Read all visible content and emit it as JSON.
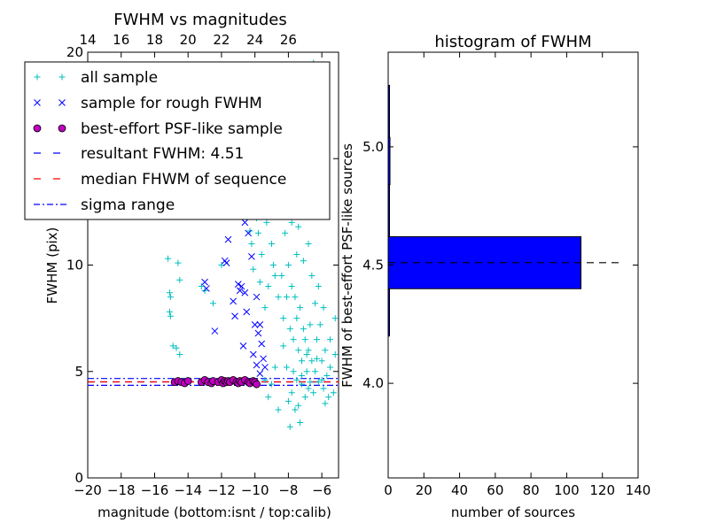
{
  "chart_data": [
    {
      "type": "scatter",
      "title": "FWHM vs magnitudes",
      "xlabel": "magnitude (bottom:isnt / top:calib)",
      "ylabel": "FWHM (pix)",
      "xlim": [
        -20,
        -5
      ],
      "ylim": [
        0,
        20
      ],
      "x_ticks": [
        -20,
        -18,
        -16,
        -14,
        -12,
        -10,
        -8,
        -6
      ],
      "y_ticks": [
        0,
        5,
        10,
        15,
        20
      ],
      "top_ticks": [
        14,
        16,
        18,
        20,
        22,
        24,
        26
      ],
      "top_offset": 34,
      "legend_position": "upper-left",
      "series": [
        {
          "name": "all sample",
          "marker": "+",
          "color": "#00bfbf",
          "points": [
            [
              -15.2,
              10.3
            ],
            [
              -15.1,
              8.7
            ],
            [
              -15.05,
              8.5
            ],
            [
              -15.1,
              7.8
            ],
            [
              -15.05,
              7.6
            ],
            [
              -14.9,
              6.2
            ],
            [
              -14.7,
              6.1
            ],
            [
              -14.6,
              10.1
            ],
            [
              -14.5,
              9.3
            ],
            [
              -14.5,
              5.8
            ],
            [
              -13.5,
              14.0
            ],
            [
              -13.2,
              9.0
            ],
            [
              -13.0,
              8.8
            ],
            [
              -12.5,
              8.2
            ],
            [
              -12.0,
              10.0
            ],
            [
              -11.5,
              12.6
            ],
            [
              -11.0,
              13.5
            ],
            [
              -10.9,
              14.8
            ],
            [
              -10.8,
              12.8
            ],
            [
              -10.5,
              14.0
            ],
            [
              -10.2,
              11.0
            ],
            [
              -10.0,
              13.0
            ],
            [
              -9.8,
              11.5
            ],
            [
              -9.6,
              10.5
            ],
            [
              -9.5,
              14.5
            ],
            [
              -9.4,
              8.0
            ],
            [
              -9.3,
              12.0
            ],
            [
              -9.2,
              9.0
            ],
            [
              -9.1,
              15.0
            ],
            [
              -9.0,
              11.0
            ],
            [
              -8.9,
              10.0
            ],
            [
              -8.8,
              9.5
            ],
            [
              -8.7,
              13.0
            ],
            [
              -8.6,
              8.5
            ],
            [
              -8.5,
              12.5
            ],
            [
              -8.4,
              9.5
            ],
            [
              -8.3,
              7.5
            ],
            [
              -8.2,
              11.5
            ],
            [
              -8.1,
              8.5
            ],
            [
              -8.0,
              10.0
            ],
            [
              -7.9,
              7.0
            ],
            [
              -7.8,
              9.0
            ],
            [
              -7.7,
              6.5
            ],
            [
              -7.6,
              8.5
            ],
            [
              -7.5,
              7.5
            ],
            [
              -7.4,
              6.0
            ],
            [
              -7.3,
              8.0
            ],
            [
              -7.2,
              5.5
            ],
            [
              -7.1,
              7.0
            ],
            [
              -7.0,
              6.5
            ],
            [
              -6.9,
              5.0
            ],
            [
              -6.8,
              6.0
            ],
            [
              -6.7,
              4.5
            ],
            [
              -6.6,
              5.5
            ],
            [
              -6.5,
              4.0
            ],
            [
              -6.4,
              5.0
            ],
            [
              -6.3,
              6.5
            ],
            [
              -6.2,
              4.5
            ],
            [
              -6.0,
              5.5
            ],
            [
              -5.9,
              4.2
            ],
            [
              -5.8,
              6.0
            ],
            [
              -5.7,
              4.8
            ],
            [
              -5.6,
              3.8
            ],
            [
              -5.5,
              5.2
            ],
            [
              -5.3,
              4.0
            ],
            [
              -5.2,
              5.8
            ],
            [
              -6.8,
              4.2
            ],
            [
              -7.0,
              3.8
            ],
            [
              -7.2,
              4.4
            ],
            [
              -7.4,
              3.4
            ],
            [
              -7.6,
              3.2
            ],
            [
              -7.8,
              4.0
            ],
            [
              -8.0,
              3.6
            ],
            [
              -7.3,
              2.6
            ],
            [
              -7.9,
              2.4
            ],
            [
              -8.8,
              5.2
            ],
            [
              -9.0,
              4.4
            ],
            [
              -9.2,
              3.8
            ],
            [
              -9.4,
              4.6
            ],
            [
              -8.6,
              3.2
            ],
            [
              -7.5,
              10.5
            ],
            [
              -7.8,
              12.0
            ],
            [
              -8.2,
              13.5
            ],
            [
              -8.5,
              14.5
            ],
            [
              -8.9,
              15.5
            ],
            [
              -9.5,
              16.0
            ],
            [
              -8.0,
              17.0
            ],
            [
              -7.0,
              18.0
            ],
            [
              -6.5,
              19.5
            ],
            [
              -7.6,
              15.0
            ],
            [
              -6.8,
              11.0
            ],
            [
              -6.2,
              9.0
            ],
            [
              -5.9,
              8.0
            ],
            [
              -5.5,
              6.5
            ],
            [
              -5.2,
              7.5
            ],
            [
              -6.1,
              7.2
            ],
            [
              -6.4,
              8.2
            ],
            [
              -6.6,
              9.5
            ],
            [
              -7.1,
              10.2
            ],
            [
              -7.4,
              11.8
            ],
            [
              -9.7,
              9.2
            ],
            [
              -9.9,
              12.2
            ],
            [
              -10.1,
              9.8
            ],
            [
              -10.3,
              11.6
            ],
            [
              -9.6,
              13.6
            ],
            [
              -8.3,
              6.2
            ],
            [
              -8.1,
              5.2
            ],
            [
              -7.7,
              5.0
            ],
            [
              -7.5,
              4.6
            ],
            [
              -7.2,
              4.8
            ],
            [
              -6.9,
              5.8
            ],
            [
              -6.7,
              7.2
            ],
            [
              -6.3,
              5.6
            ],
            [
              -6.0,
              4.6
            ],
            [
              -5.8,
              3.5
            ]
          ]
        },
        {
          "name": "sample for rough FWHM",
          "marker": "x",
          "color": "#0000ff",
          "points": [
            [
              -13.0,
              9.2
            ],
            [
              -12.9,
              8.9
            ],
            [
              -12.4,
              6.9
            ],
            [
              -11.8,
              10.2
            ],
            [
              -11.7,
              10.1
            ],
            [
              -11.3,
              8.3
            ],
            [
              -11.2,
              7.6
            ],
            [
              -11.0,
              9.1
            ],
            [
              -10.9,
              8.8
            ],
            [
              -10.8,
              9.0
            ],
            [
              -10.7,
              6.2
            ],
            [
              -10.6,
              8.7
            ],
            [
              -10.5,
              7.8
            ],
            [
              -10.4,
              11.5
            ],
            [
              -10.3,
              12.5
            ],
            [
              -10.2,
              10.4
            ],
            [
              -10.0,
              7.2
            ],
            [
              -9.9,
              8.5
            ],
            [
              -9.8,
              6.8
            ],
            [
              -9.7,
              7.2
            ],
            [
              -9.6,
              6.3
            ],
            [
              -9.5,
              5.6
            ],
            [
              -9.4,
              5.2
            ],
            [
              -10.8,
              13.2
            ],
            [
              -11.0,
              14.2
            ],
            [
              -10.1,
              5.8
            ],
            [
              -9.9,
              5.3
            ],
            [
              -9.7,
              4.9
            ],
            [
              -11.6,
              11.2
            ],
            [
              -10.6,
              12.0
            ]
          ]
        },
        {
          "name": "best-effort PSF-like sample",
          "marker": "o",
          "color": "#bf00bf",
          "points": [
            [
              -14.8,
              4.5
            ],
            [
              -14.6,
              4.55
            ],
            [
              -14.4,
              4.5
            ],
            [
              -14.2,
              4.45
            ],
            [
              -14.0,
              4.55
            ],
            [
              -13.2,
              4.5
            ],
            [
              -13.0,
              4.6
            ],
            [
              -12.8,
              4.5
            ],
            [
              -12.6,
              4.45
            ],
            [
              -12.5,
              4.55
            ],
            [
              -12.2,
              4.5
            ],
            [
              -12.0,
              4.6
            ],
            [
              -11.9,
              4.45
            ],
            [
              -11.8,
              4.55
            ],
            [
              -11.7,
              4.5
            ],
            [
              -11.6,
              4.55
            ],
            [
              -11.5,
              4.5
            ],
            [
              -11.3,
              4.6
            ],
            [
              -11.1,
              4.5
            ],
            [
              -11.0,
              4.45
            ],
            [
              -10.9,
              4.55
            ],
            [
              -10.8,
              4.5
            ],
            [
              -10.6,
              4.6
            ],
            [
              -10.4,
              4.5
            ],
            [
              -10.3,
              4.45
            ],
            [
              -10.1,
              4.55
            ],
            [
              -10.0,
              4.5
            ],
            [
              -9.9,
              4.4
            ]
          ]
        },
        {
          "name": "resultant FWHM: 4.51",
          "line": "dashed",
          "color": "#0000ff",
          "y": 4.51
        },
        {
          "name": "median FHWM of sequence",
          "line": "dashed",
          "color": "#ff0000",
          "y": 4.51
        },
        {
          "name": "sigma range",
          "line": "dashdot",
          "color": "#0000ff",
          "y": [
            4.35,
            4.67
          ]
        }
      ]
    },
    {
      "type": "bar",
      "orientation": "horizontal",
      "title": "histogram of FWHM",
      "xlabel": "number of sources",
      "ylabel": "FWHM of best-effort PSF-like sources",
      "xlim": [
        0,
        140
      ],
      "ylim": [
        3.6,
        5.4
      ],
      "x_ticks": [
        0,
        20,
        40,
        60,
        80,
        100,
        120,
        140
      ],
      "y_ticks": [
        4.0,
        4.5,
        5.0
      ],
      "y_tick_labels": [
        "4.0",
        "4.5",
        "5.0"
      ],
      "color": "#0000ff",
      "bins": [
        {
          "y0": 4.2,
          "y1": 4.4,
          "count": 0.3
        },
        {
          "y0": 4.4,
          "y1": 4.62,
          "count": 108
        },
        {
          "y0": 4.62,
          "y1": 4.84,
          "count": 0.4
        },
        {
          "y0": 4.84,
          "y1": 5.04,
          "count": 1
        },
        {
          "y0": 5.04,
          "y1": 5.26,
          "count": 0.6
        }
      ],
      "reference_line": {
        "y": 4.51,
        "style": "dashed",
        "color": "#000000"
      }
    }
  ]
}
